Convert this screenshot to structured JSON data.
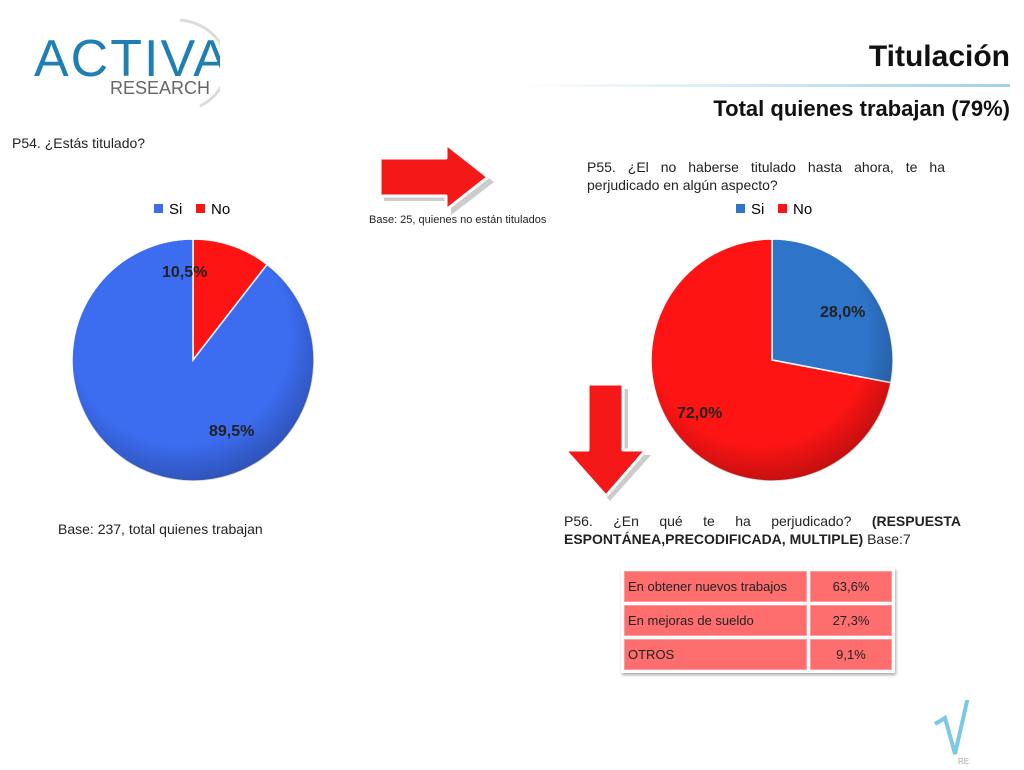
{
  "logo": {
    "word1": "ACTIVA",
    "word2": "RESEARCH"
  },
  "header": {
    "title": "Titulación",
    "subtitle": "Total quienes trabajan (79%)"
  },
  "q54": {
    "question": "P54. ¿Estás titulado?",
    "base": "Base: 237, total quienes trabajan"
  },
  "q55": {
    "question": "P55. ¿El no haberse titulado hasta ahora, te ha perjudicado en algún aspecto?",
    "base": "Base: 25, quienes no están titulados"
  },
  "q56": {
    "question_part1": "P56. ¿En qué te ha perjudicado?",
    "question_bold": "(RESPUESTA ESPONTÁNEA,PRECODIFICADA, MULTIPLE)",
    "question_part2": "Base:7"
  },
  "colors": {
    "si_p54": "#3c6cf0",
    "no": "#ff1414",
    "si_p55": "#2e74c8",
    "arrow": "#f51818",
    "table_cell": "#ff6e6e"
  },
  "chart_data": [
    {
      "type": "pie",
      "legend_position": "top",
      "series": [
        {
          "name": "Si",
          "value": 89.5,
          "label": "89,5%"
        },
        {
          "name": "No",
          "value": 10.5,
          "label": "10,5%"
        }
      ]
    },
    {
      "type": "pie",
      "legend_position": "top",
      "series": [
        {
          "name": "Si",
          "value": 28.0,
          "label": "28,0%"
        },
        {
          "name": "No",
          "value": 72.0,
          "label": "72,0%"
        }
      ]
    },
    {
      "type": "table",
      "rows": [
        {
          "label": "En obtener nuevos trabajos",
          "value": "63,6%"
        },
        {
          "label": "En mejoras de sueldo",
          "value": "27,3%"
        },
        {
          "label": "OTROS",
          "value": "9,1%"
        }
      ]
    }
  ],
  "footer": {
    "logo_text": "RESEARCH"
  }
}
